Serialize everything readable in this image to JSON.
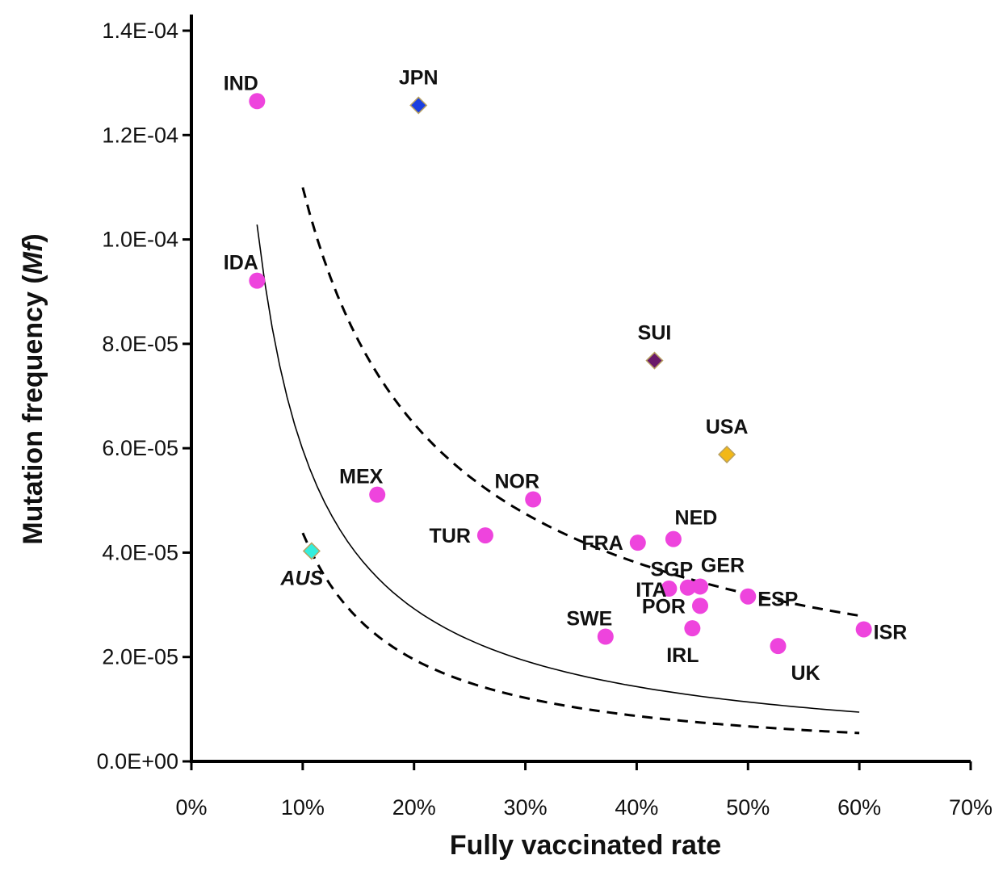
{
  "chart_data": {
    "type": "scatter",
    "title": "",
    "xlabel": "Fully vaccinated rate",
    "ylabel": "Mutation frequency (",
    "ylabel_italic": "Mf",
    "ylabel_suffix": ")",
    "xlim": [
      0,
      70
    ],
    "ylim": [
      0,
      0.00014
    ],
    "x_ticks": [
      {
        "value": 0,
        "label": "0%"
      },
      {
        "value": 10,
        "label": "10%"
      },
      {
        "value": 20,
        "label": "20%"
      },
      {
        "value": 30,
        "label": "30%"
      },
      {
        "value": 40,
        "label": "40%"
      },
      {
        "value": 50,
        "label": "50%"
      },
      {
        "value": 60,
        "label": "60%"
      },
      {
        "value": 70,
        "label": "70%"
      }
    ],
    "y_ticks": [
      {
        "value": 0,
        "label": "0.0E+00"
      },
      {
        "value": 2e-05,
        "label": "2.0E-05"
      },
      {
        "value": 4e-05,
        "label": "4.0E-05"
      },
      {
        "value": 6e-05,
        "label": "6.0E-05"
      },
      {
        "value": 8e-05,
        "label": "8.0E-05"
      },
      {
        "value": 0.0001,
        "label": "1.0E-04"
      },
      {
        "value": 0.00012,
        "label": "1.2E-04"
      },
      {
        "value": 0.00014,
        "label": "1.4E-04"
      }
    ],
    "series": [
      {
        "name": "countries",
        "marker": "circle",
        "color": "#ee44dd",
        "points": [
          {
            "label": "IND",
            "x": 5.9,
            "y": 0.0001265,
            "anchor": "above-left"
          },
          {
            "label": "IDA",
            "x": 5.9,
            "y": 9.21e-05,
            "anchor": "above-left"
          },
          {
            "label": "MEX",
            "x": 16.7,
            "y": 5.11e-05,
            "anchor": "above-left"
          },
          {
            "label": "TUR",
            "x": 26.4,
            "y": 4.33e-05,
            "anchor": "left"
          },
          {
            "label": "NOR",
            "x": 30.7,
            "y": 5.02e-05,
            "anchor": "above-left"
          },
          {
            "label": "SWE",
            "x": 37.2,
            "y": 2.39e-05,
            "anchor": "above-left"
          },
          {
            "label": "FRA",
            "x": 40.1,
            "y": 4.19e-05,
            "anchor": "left"
          },
          {
            "label": "NED",
            "x": 43.3,
            "y": 4.26e-05,
            "anchor": "above-right"
          },
          {
            "label": "ITA",
            "x": 42.9,
            "y": 3.31e-05,
            "anchor": "below-left"
          },
          {
            "label": "SGP",
            "x": 44.6,
            "y": 3.33e-05,
            "anchor": "above-left"
          },
          {
            "label": "GER",
            "x": 45.7,
            "y": 3.35e-05,
            "anchor": "above-right"
          },
          {
            "label": "POR",
            "x": 45.7,
            "y": 2.98e-05,
            "anchor": "left"
          },
          {
            "label": "IRL",
            "x": 45.0,
            "y": 2.55e-05,
            "anchor": "below"
          },
          {
            "label": "ESP",
            "x": 50.0,
            "y": 3.16e-05,
            "anchor": "right"
          },
          {
            "label": "UK",
            "x": 52.7,
            "y": 2.21e-05,
            "anchor": "below-right"
          },
          {
            "label": "ISR",
            "x": 60.4,
            "y": 2.53e-05,
            "anchor": "right"
          }
        ]
      },
      {
        "name": "outliers",
        "marker": "diamond",
        "points": [
          {
            "label": "JPN",
            "x": 20.4,
            "y": 0.0001257,
            "color": "#1a3fe0",
            "anchor": "above"
          },
          {
            "label": "SUI",
            "x": 41.6,
            "y": 7.68e-05,
            "color": "#6a1a6a",
            "anchor": "above"
          },
          {
            "label": "USA",
            "x": 48.1,
            "y": 5.88e-05,
            "color": "#f2b817",
            "anchor": "above"
          },
          {
            "label": "AUS",
            "x": 10.8,
            "y": 4.03e-05,
            "color": "#33eedd",
            "anchor": "below",
            "italic": true
          }
        ]
      }
    ],
    "fit_lines": [
      {
        "name": "fit",
        "style": "solid",
        "a": 0.00064,
        "b": -1.03,
        "x_range": [
          5.9,
          60
        ]
      },
      {
        "name": "upper-bound",
        "style": "dashed",
        "a": 0.00064,
        "b": -0.765,
        "x_range": [
          10,
          60
        ]
      },
      {
        "name": "lower-bound",
        "style": "dashed",
        "a": 0.00064,
        "b": -1.165,
        "x_range": [
          10,
          60
        ]
      }
    ]
  }
}
